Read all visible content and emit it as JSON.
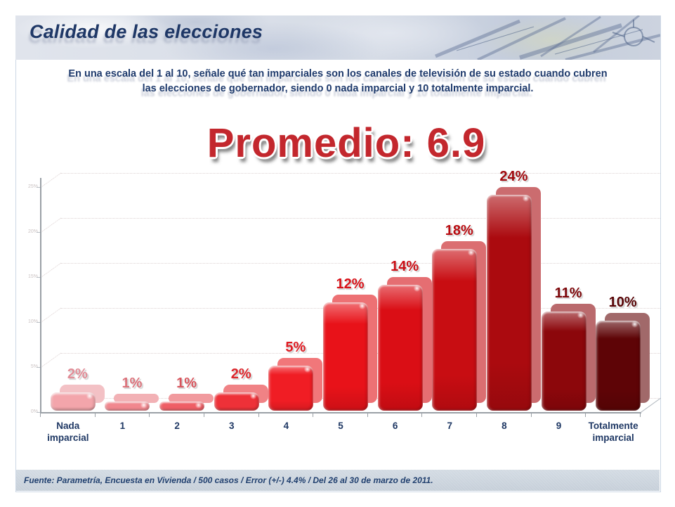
{
  "header": {
    "title": "Calidad de las elecciones"
  },
  "question": {
    "line1": "En una escala del 1 al 10, señale qué tan imparciales son los canales de televisión de su estado cuando cubren",
    "line2": "las elecciones de gobernador, siendo 0 nada imparcial y 10 totalmente imparcial."
  },
  "average": {
    "text": "Promedio: 6.9"
  },
  "footer": {
    "source": "Fuente: Parametría, Encuesta en Vivienda / 500 casos / Error (+/-) 4.4% / Del 26 al 30 de marzo de 2011."
  },
  "chart_data": {
    "type": "bar",
    "title": "Promedio: 6.9",
    "categories": [
      "Nada imparcial",
      "1",
      "2",
      "3",
      "4",
      "5",
      "6",
      "7",
      "8",
      "9",
      "Totalmente imparcial"
    ],
    "values": [
      2,
      1,
      1,
      2,
      5,
      12,
      14,
      18,
      24,
      11,
      10
    ],
    "value_labels": [
      "2%",
      "1%",
      "1%",
      "2%",
      "5%",
      "12%",
      "14%",
      "18%",
      "24%",
      "11%",
      "10%"
    ],
    "bar_colors": [
      "#f3a5ab",
      "#f1878e",
      "#ef5e65",
      "#ee3138",
      "#f01d24",
      "#e81219",
      "#da0e15",
      "#c80d12",
      "#ab0a0f",
      "#8c070b",
      "#5e0406"
    ],
    "label_colors": [
      "#e18d97",
      "#dc737c",
      "#d8555d",
      "#dc262c",
      "#e01b22",
      "#d81118",
      "#cb0e15",
      "#b90c11",
      "#a1090e",
      "#7d0609",
      "#570305"
    ],
    "xlabel": "",
    "ylabel": "",
    "ylim": [
      0,
      25
    ],
    "ytick_labels": [
      "0%",
      "5%",
      "10%",
      "15%",
      "20%",
      "25%"
    ],
    "grid": "dotted-horizontal",
    "legend": "none",
    "style": "3d-rounded-columns"
  }
}
